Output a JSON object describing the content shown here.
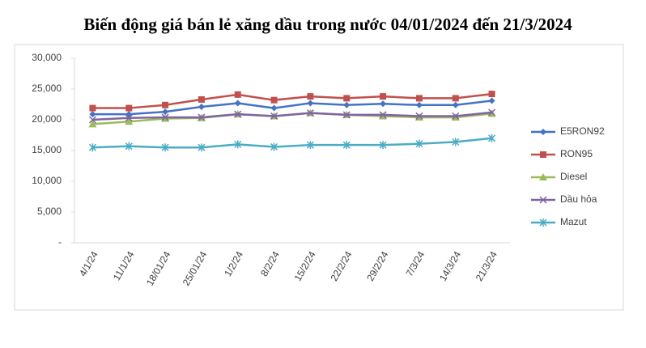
{
  "chart_data": {
    "type": "line",
    "title": "Biến động giá bán lẻ xăng dầu trong nước 04/01/2024 đến 21/3/2024",
    "categories": [
      "4/1/24",
      "11/1/24",
      "18/01/24",
      "25/01/24",
      "1/2/24",
      "8/2/24",
      "15/2/24",
      "22/2/24",
      "29/2/24",
      "7/3/24",
      "14/3/24",
      "21/3/24"
    ],
    "series": [
      {
        "name": "E5RON92",
        "color": "#4472c4",
        "marker": "diamond",
        "values": [
          20900,
          20900,
          21300,
          22100,
          22700,
          21900,
          22700,
          22400,
          22600,
          22400,
          22400,
          23100
        ]
      },
      {
        "name": "RON95",
        "color": "#c0504d",
        "marker": "square",
        "values": [
          21900,
          21900,
          22400,
          23300,
          24100,
          23200,
          23800,
          23500,
          23800,
          23500,
          23500,
          24200
        ]
      },
      {
        "name": "Diesel",
        "color": "#9bbb59",
        "marker": "triangle",
        "values": [
          19300,
          19700,
          20200,
          20300,
          20900,
          20600,
          21100,
          20800,
          20600,
          20400,
          20400,
          21000
        ]
      },
      {
        "name": "Dầu hỏa",
        "color": "#8064a2",
        "marker": "x",
        "values": [
          20000,
          20300,
          20400,
          20400,
          20900,
          20600,
          21100,
          20800,
          20800,
          20600,
          20600,
          21200
        ]
      },
      {
        "name": "Mazut",
        "color": "#4bacc6",
        "marker": "star",
        "values": [
          15500,
          15700,
          15500,
          15500,
          16000,
          15600,
          15900,
          15900,
          15900,
          16100,
          16400,
          17000
        ]
      }
    ],
    "ylim": [
      0,
      30000
    ],
    "yticks": [
      {
        "value": 0,
        "label": "-"
      },
      {
        "value": 5000,
        "label": "5,000"
      },
      {
        "value": 10000,
        "label": "10,000"
      },
      {
        "value": 15000,
        "label": "15,000"
      },
      {
        "value": 20000,
        "label": "20,000"
      },
      {
        "value": 25000,
        "label": "25,000"
      },
      {
        "value": 30000,
        "label": "30,000"
      }
    ],
    "grid": false,
    "legend": "right"
  }
}
